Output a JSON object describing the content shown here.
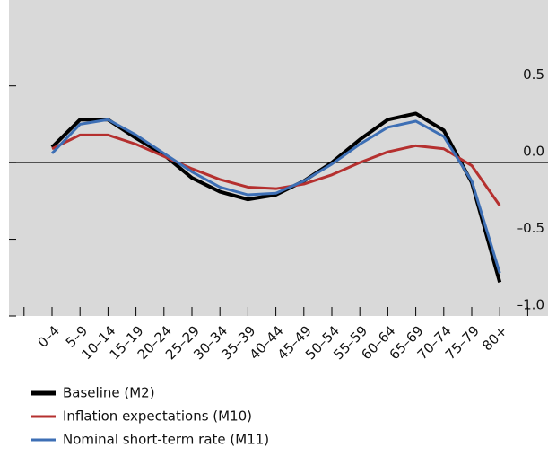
{
  "chart_data": {
    "type": "line",
    "categories": [
      "0–4",
      "5–9",
      "10–14",
      "15–19",
      "20–24",
      "25–29",
      "30–34",
      "35–39",
      "40–44",
      "45–49",
      "50–54",
      "55–59",
      "60–64",
      "65–69",
      "70–74",
      "75–79",
      "80+"
    ],
    "series": [
      {
        "name": "Baseline (M2)",
        "color": "#000000",
        "values": [
          0.1,
          0.28,
          0.28,
          0.16,
          0.05,
          -0.1,
          -0.19,
          -0.24,
          -0.21,
          -0.12,
          0.0,
          0.15,
          0.28,
          0.32,
          0.21,
          -0.13,
          -0.78
        ]
      },
      {
        "name": "Inflation expectations (M10)",
        "color": "#b5302f",
        "values": [
          0.09,
          0.18,
          0.18,
          0.12,
          0.04,
          -0.04,
          -0.11,
          -0.16,
          -0.17,
          -0.14,
          -0.08,
          0.0,
          0.07,
          0.11,
          0.09,
          -0.02,
          -0.28
        ]
      },
      {
        "name": "Nominal short-term rate (M11)",
        "color": "#3d6fb5",
        "values": [
          0.06,
          0.25,
          0.28,
          0.18,
          0.06,
          -0.06,
          -0.16,
          -0.21,
          -0.2,
          -0.12,
          -0.01,
          0.12,
          0.23,
          0.27,
          0.17,
          -0.12,
          -0.72
        ]
      }
    ],
    "ylim": [
      -1.0,
      1.06
    ],
    "yticks": [
      {
        "value": -1.0,
        "label": "–1.0"
      },
      {
        "value": -0.5,
        "label": "–0.5"
      },
      {
        "value": 0.0,
        "label": "0.0"
      },
      0.5
    ],
    "background": "#d9d9d9"
  }
}
